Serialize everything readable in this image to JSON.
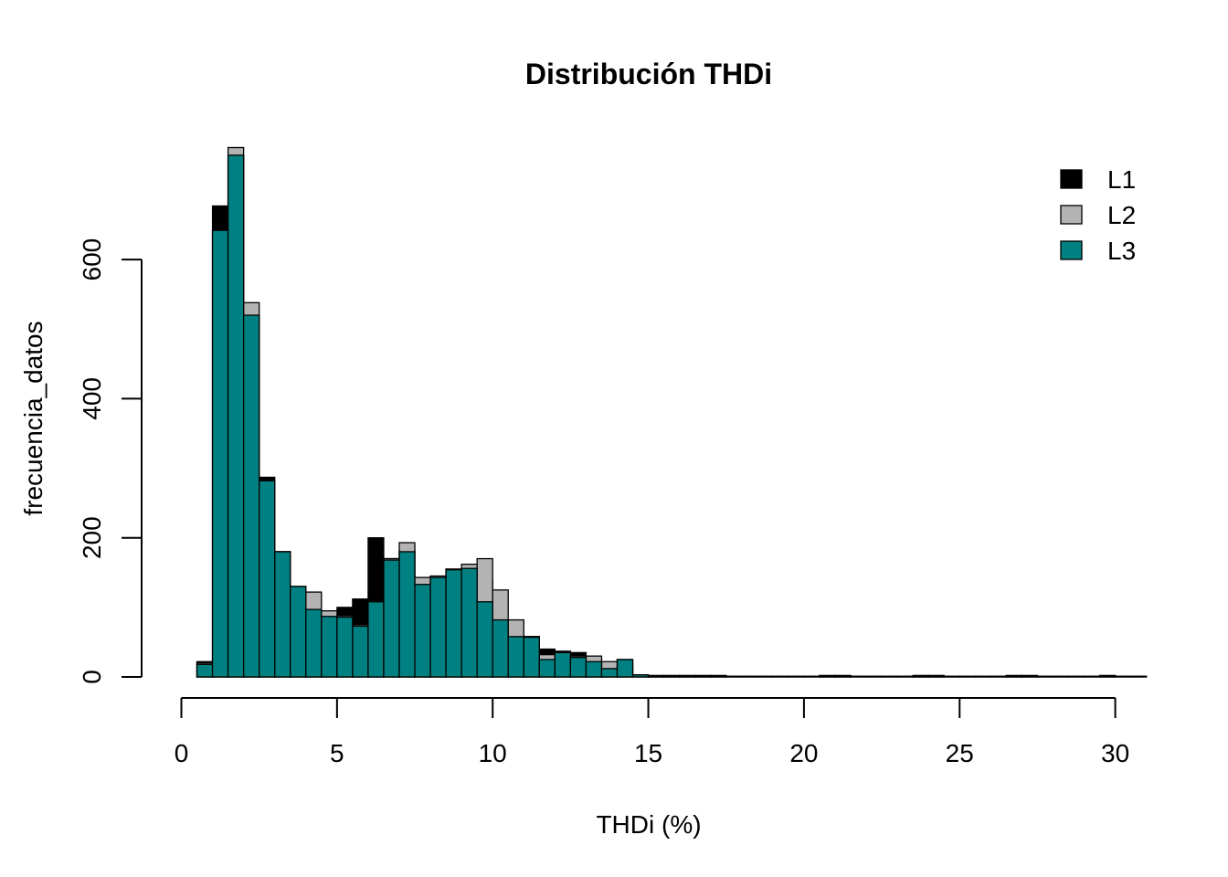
{
  "chart_data": {
    "type": "bar",
    "title": "Distribución THDi",
    "xlabel": "THDi (%)",
    "ylabel": "frecuencia_datos",
    "xlim": [
      0,
      31.2
    ],
    "ylim": [
      0,
      760
    ],
    "x_ticks": [
      0,
      5,
      10,
      15,
      20,
      25,
      30
    ],
    "y_ticks": [
      0,
      200,
      400,
      600
    ],
    "bin_width": 0.5,
    "x": [
      0.5,
      1.0,
      1.5,
      2.0,
      2.5,
      3.0,
      3.5,
      4.0,
      4.5,
      5.0,
      5.5,
      6.0,
      6.5,
      7.0,
      7.5,
      8.0,
      8.5,
      9.0,
      9.5,
      10.0,
      10.5,
      11.0,
      11.5,
      12.0,
      12.5,
      13.0,
      13.5,
      14.0,
      14.5,
      15.0,
      15.5,
      16.0,
      16.5,
      17.0,
      17.5,
      18.0,
      18.5,
      19.0,
      19.5,
      20.0,
      20.5,
      21.0,
      21.5,
      22.0,
      22.5,
      23.0,
      23.5,
      24.0,
      24.5,
      25.0,
      25.5,
      26.0,
      26.5,
      27.0,
      27.5,
      28.0,
      28.5,
      29.0,
      29.5,
      30.0,
      30.5
    ],
    "series": [
      {
        "name": "L1",
        "color": "#000000",
        "values": [
          22,
          677,
          748,
          520,
          287,
          180,
          130,
          110,
          88,
          100,
          112,
          200,
          170,
          182,
          133,
          145,
          155,
          157,
          138,
          82,
          60,
          58,
          40,
          37,
          35,
          25,
          20,
          25,
          3,
          2,
          2,
          2,
          2,
          2,
          1,
          1,
          1,
          1,
          1,
          1,
          2,
          2,
          1,
          1,
          1,
          1,
          2,
          2,
          1,
          1,
          1,
          1,
          2,
          2,
          1,
          1,
          1,
          1,
          2,
          1,
          1
        ]
      },
      {
        "name": "L2",
        "color": "#b3b3b3",
        "values": [
          20,
          642,
          761,
          538,
          283,
          180,
          130,
          122,
          95,
          88,
          75,
          108,
          170,
          193,
          143,
          145,
          155,
          162,
          170,
          125,
          82,
          58,
          32,
          35,
          30,
          30,
          22,
          15,
          2,
          2,
          2,
          2,
          2,
          2,
          1,
          1,
          1,
          1,
          1,
          1,
          2,
          2,
          1,
          1,
          1,
          1,
          2,
          2,
          1,
          1,
          1,
          1,
          2,
          2,
          1,
          1,
          1,
          1,
          2,
          1,
          1
        ]
      },
      {
        "name": "L3",
        "color": "#008080",
        "values": [
          18,
          642,
          750,
          520,
          282,
          180,
          130,
          97,
          87,
          86,
          73,
          108,
          168,
          180,
          133,
          143,
          154,
          156,
          108,
          82,
          58,
          57,
          25,
          35,
          28,
          22,
          12,
          25,
          3,
          1,
          1,
          1,
          1,
          1,
          0,
          0,
          0,
          0,
          0,
          0,
          1,
          1,
          0,
          0,
          0,
          0,
          1,
          1,
          0,
          0,
          0,
          0,
          1,
          1,
          0,
          0,
          0,
          0,
          1,
          0,
          0
        ]
      }
    ],
    "legend": {
      "position": "top-right",
      "entries": [
        "L1",
        "L2",
        "L3"
      ]
    }
  }
}
